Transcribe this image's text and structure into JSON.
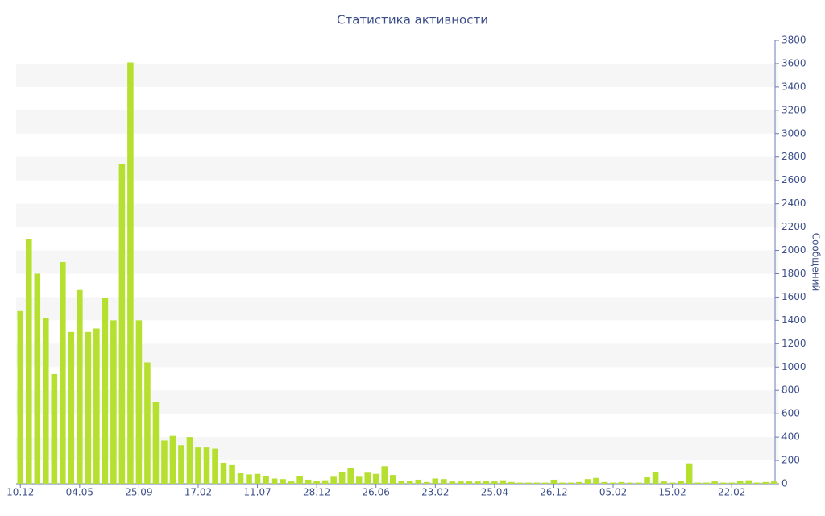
{
  "chart_data": {
    "type": "bar",
    "title": "Статистика активности",
    "y_label": "Сообщений",
    "categories": [
      "10.12",
      null,
      null,
      null,
      null,
      null,
      null,
      "04.05",
      null,
      null,
      null,
      null,
      null,
      null,
      "25.09",
      null,
      null,
      null,
      null,
      null,
      null,
      "17.02",
      null,
      null,
      null,
      null,
      null,
      null,
      "11.07",
      null,
      null,
      null,
      null,
      null,
      null,
      "28.12",
      null,
      null,
      null,
      null,
      null,
      null,
      "26.06",
      null,
      null,
      null,
      null,
      null,
      null,
      "23.02",
      null,
      null,
      null,
      null,
      null,
      null,
      "25.04",
      null,
      null,
      null,
      null,
      null,
      null,
      "26.12",
      null,
      null,
      null,
      null,
      null,
      null,
      "05.02",
      null,
      null,
      null,
      null,
      null,
      null,
      "15.02",
      null,
      null,
      null,
      null,
      null,
      null,
      "22.02",
      null,
      null,
      null,
      null,
      null
    ],
    "values": [
      1480,
      2100,
      1800,
      1420,
      940,
      1900,
      1300,
      1660,
      1300,
      1330,
      1590,
      1400,
      2740,
      3610,
      1400,
      1040,
      700,
      370,
      410,
      330,
      400,
      310,
      310,
      300,
      180,
      160,
      90,
      80,
      85,
      65,
      45,
      40,
      20,
      65,
      35,
      25,
      30,
      60,
      100,
      135,
      60,
      95,
      85,
      150,
      75,
      25,
      25,
      35,
      15,
      45,
      40,
      20,
      20,
      20,
      20,
      25,
      20,
      30,
      15,
      10,
      10,
      10,
      10,
      35,
      10,
      10,
      15,
      40,
      50,
      15,
      10,
      15,
      10,
      10,
      55,
      100,
      20,
      10,
      25,
      175,
      10,
      10,
      20,
      10,
      10,
      25,
      30,
      10,
      15,
      20
    ],
    "color": "#b5e030",
    "ylim": [
      0,
      3800
    ],
    "yticks": [
      0,
      200,
      400,
      600,
      800,
      1000,
      1200,
      1400,
      1600,
      1800,
      2000,
      2200,
      2400,
      2600,
      2800,
      3000,
      3200,
      3400,
      3600,
      3800
    ],
    "y_axis_side": "right",
    "grid_bands": true
  }
}
